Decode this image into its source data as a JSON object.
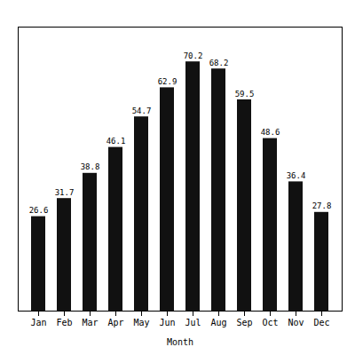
{
  "chart_data": {
    "type": "bar",
    "categories": [
      "Jan",
      "Feb",
      "Mar",
      "Apr",
      "May",
      "Jun",
      "Jul",
      "Aug",
      "Sep",
      "Oct",
      "Nov",
      "Dec"
    ],
    "values": [
      26.6,
      31.7,
      38.8,
      46.1,
      54.7,
      62.9,
      70.2,
      68.2,
      59.5,
      48.6,
      36.4,
      27.8
    ],
    "color": "#111111",
    "xlabel": "Month",
    "ylim": [
      0,
      80
    ],
    "grid": false,
    "data_labels": true,
    "tick_labels": "x"
  }
}
